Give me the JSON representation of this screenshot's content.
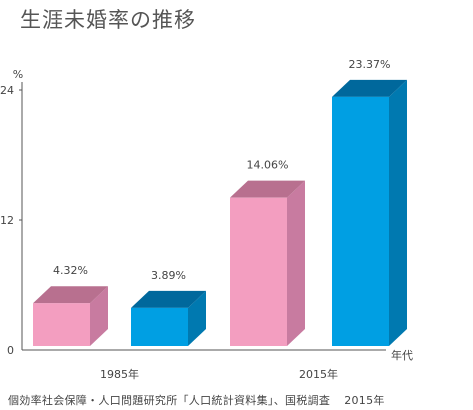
{
  "title": "生涯未婚率の推移",
  "source": {
    "text": "個効率社会保障・人口問題研究所「人口統計資料集」、国税調査",
    "year": "2015年"
  },
  "chart_data": {
    "type": "bar",
    "style": "3d",
    "ylabel": "%",
    "xlabel": "年代",
    "yticks": [
      0,
      12,
      24
    ],
    "ylim": [
      0,
      24
    ],
    "groups": [
      "1985年",
      "2015年"
    ],
    "series_labels": [],
    "bars": [
      {
        "group": "1985年",
        "value": 4.32,
        "label": "4.32%",
        "color": "pink"
      },
      {
        "group": "1985年",
        "value": 3.89,
        "label": "3.89%",
        "color": "blue"
      },
      {
        "group": "2015年",
        "value": 14.06,
        "label": "14.06%",
        "color": "pink"
      },
      {
        "group": "2015年",
        "value": 23.37,
        "label": "23.37%",
        "color": "blue"
      }
    ],
    "colors": {
      "pink": {
        "front": "#f39ec0",
        "top": "#b8708f",
        "side": "#c87ba0"
      },
      "blue": {
        "front": "#009fe3",
        "top": "#00689c",
        "side": "#0079b0"
      },
      "axis": "#555555"
    }
  }
}
